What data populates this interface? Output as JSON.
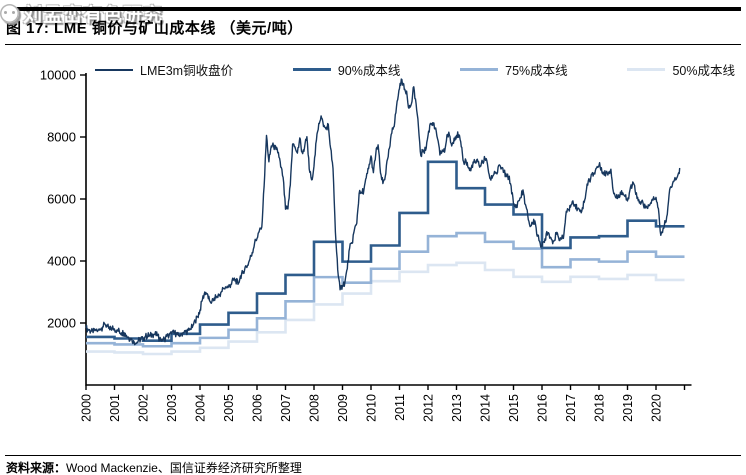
{
  "header": {
    "figure_label": "图 17:",
    "figure_title": "LME 铜价与矿山成本线 （美元/吨）"
  },
  "footer": {
    "source_label": "资料来源：",
    "source_text": "Wood Mackenzie、国信证券经济研究所整理"
  },
  "watermark": {
    "text": "刘孟峦有色研究"
  },
  "colors": {
    "price_line": "#17375E",
    "cost90": "#2E5C8C",
    "cost75": "#95B3D7",
    "cost50": "#DCE6F2",
    "axis": "#000000",
    "text": "#000000"
  },
  "chart_data": {
    "type": "line",
    "title": "LME 铜价与矿山成本线（美元/吨）",
    "xlabel": "",
    "ylabel": "",
    "ylim": [
      0,
      10000
    ],
    "y_ticks": [
      2000,
      4000,
      6000,
      8000,
      10000
    ],
    "x_ticks": [
      2000,
      2001,
      2002,
      2003,
      2004,
      2005,
      2006,
      2007,
      2008,
      2009,
      2010,
      2011,
      2012,
      2013,
      2014,
      2015,
      2016,
      2017,
      2018,
      2019,
      2020
    ],
    "grid": false,
    "legend_position": "top",
    "series": [
      {
        "name": "LME3m铜收盘价",
        "kind": "monthly_line",
        "color": "#17375E",
        "stroke_width": 1.4,
        "start_year": 2000,
        "values": [
          1840,
          1780,
          1740,
          1690,
          1790,
          1750,
          1800,
          1870,
          1960,
          1900,
          1780,
          1850,
          1800,
          1770,
          1740,
          1680,
          1690,
          1600,
          1530,
          1470,
          1430,
          1350,
          1420,
          1480,
          1510,
          1560,
          1600,
          1590,
          1630,
          1640,
          1590,
          1480,
          1480,
          1480,
          1570,
          1590,
          1650,
          1680,
          1660,
          1590,
          1650,
          1690,
          1710,
          1760,
          1790,
          1920,
          2060,
          2200,
          2420,
          2750,
          3000,
          2950,
          2720,
          2690,
          2810,
          2850,
          2890,
          3010,
          3120,
          3150,
          3170,
          3250,
          3380,
          3400,
          3250,
          3520,
          3610,
          3800,
          3860,
          4060,
          4270,
          4580,
          4730,
          4980,
          5100,
          6400,
          8050,
          7200,
          7710,
          7700,
          7600,
          7500,
          7030,
          6700,
          5670,
          5680,
          6450,
          7770,
          7680,
          7480,
          7970,
          7510,
          7650,
          8010,
          6970,
          6620,
          7060,
          7890,
          8440,
          8680,
          8340,
          8260,
          8410,
          7640,
          6990,
          4930,
          3720,
          3070,
          3220,
          3310,
          3750,
          4410,
          4570,
          5010,
          5220,
          6170,
          6200,
          6290,
          6680,
          6980,
          7390,
          6850,
          7460,
          7750,
          6840,
          6500,
          6740,
          7290,
          7710,
          8290,
          8470,
          9150,
          9560,
          9850,
          9530,
          9480,
          8930,
          9070,
          9620,
          9070,
          8310,
          7390,
          7580,
          7570,
          8040,
          8440,
          8460,
          8260,
          7950,
          7420,
          7580,
          7510,
          8070,
          8060,
          7710,
          7960,
          8050,
          8070,
          7680,
          7200,
          7240,
          7000,
          6910,
          7190,
          7160,
          7200,
          7070,
          7210,
          7290,
          7140,
          6670,
          6670,
          6890,
          6810,
          7100,
          7000,
          6870,
          6740,
          6710,
          6420,
          5830,
          5720,
          5940,
          6040,
          6290,
          5830,
          5460,
          5110,
          5220,
          5290,
          4800,
          4640,
          4470,
          4600,
          4950,
          4870,
          4690,
          4640,
          4860,
          4750,
          4720,
          4730,
          5450,
          5660,
          5740,
          5940,
          5820,
          5680,
          5600,
          5720,
          5980,
          6480,
          6580,
          6810,
          6840,
          7000,
          7080,
          7010,
          6800,
          6850,
          6850,
          6960,
          6250,
          6050,
          6050,
          6220,
          6200,
          6080,
          5940,
          6280,
          6450,
          6440,
          6020,
          5870,
          5940,
          5710,
          5760,
          5780,
          5860,
          6070,
          6050,
          5690,
          4830,
          5050,
          5240,
          5740,
          6370,
          6500,
          6690,
          6720,
          7000
        ]
      },
      {
        "name": "90%成本线",
        "kind": "step_yearly",
        "color": "#2E5C8C",
        "stroke_width": 2.6,
        "years": [
          2000,
          2001,
          2002,
          2003,
          2004,
          2005,
          2006,
          2007,
          2008,
          2009,
          2010,
          2011,
          2012,
          2013,
          2014,
          2015,
          2016,
          2017,
          2018,
          2019,
          2020
        ],
        "values": [
          1550,
          1500,
          1430,
          1650,
          1950,
          2330,
          2950,
          3550,
          4620,
          3980,
          4500,
          5550,
          7200,
          6350,
          5820,
          5500,
          4420,
          4760,
          4800,
          5300,
          5120
        ]
      },
      {
        "name": "75%成本线",
        "kind": "step_yearly",
        "color": "#95B3D7",
        "stroke_width": 2.6,
        "years": [
          2000,
          2001,
          2002,
          2003,
          2004,
          2005,
          2006,
          2007,
          2008,
          2009,
          2010,
          2011,
          2012,
          2013,
          2014,
          2015,
          2016,
          2017,
          2018,
          2019,
          2020
        ],
        "values": [
          1350,
          1310,
          1250,
          1350,
          1520,
          1780,
          2150,
          2700,
          3480,
          3300,
          3750,
          4300,
          4800,
          4900,
          4620,
          4400,
          3800,
          4050,
          3980,
          4300,
          4140
        ]
      },
      {
        "name": "50%成本线",
        "kind": "step_yearly",
        "color": "#DCE6F2",
        "stroke_width": 2.6,
        "years": [
          2000,
          2001,
          2002,
          2003,
          2004,
          2005,
          2006,
          2007,
          2008,
          2009,
          2010,
          2011,
          2012,
          2013,
          2014,
          2015,
          2016,
          2017,
          2018,
          2019,
          2020
        ],
        "values": [
          1080,
          1050,
          1000,
          1080,
          1200,
          1400,
          1700,
          2100,
          2600,
          2950,
          3350,
          3650,
          3870,
          3940,
          3710,
          3490,
          3330,
          3490,
          3420,
          3550,
          3390
        ]
      }
    ]
  }
}
